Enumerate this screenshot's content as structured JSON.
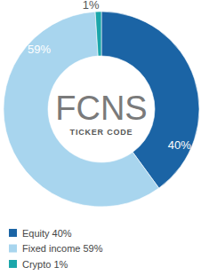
{
  "chart_data": {
    "type": "donut",
    "title": "FCNS",
    "subtitle": "TICKER CODE",
    "categories": [
      "Equity",
      "Fixed income",
      "Crypto"
    ],
    "values": [
      40,
      59,
      1
    ],
    "value_labels": [
      "40%",
      "59%",
      "1%"
    ],
    "colors": [
      "#1b64a5",
      "#a8d5ee",
      "#1ba6aa"
    ],
    "data_labels": true,
    "legend": "bottom-left"
  }
}
